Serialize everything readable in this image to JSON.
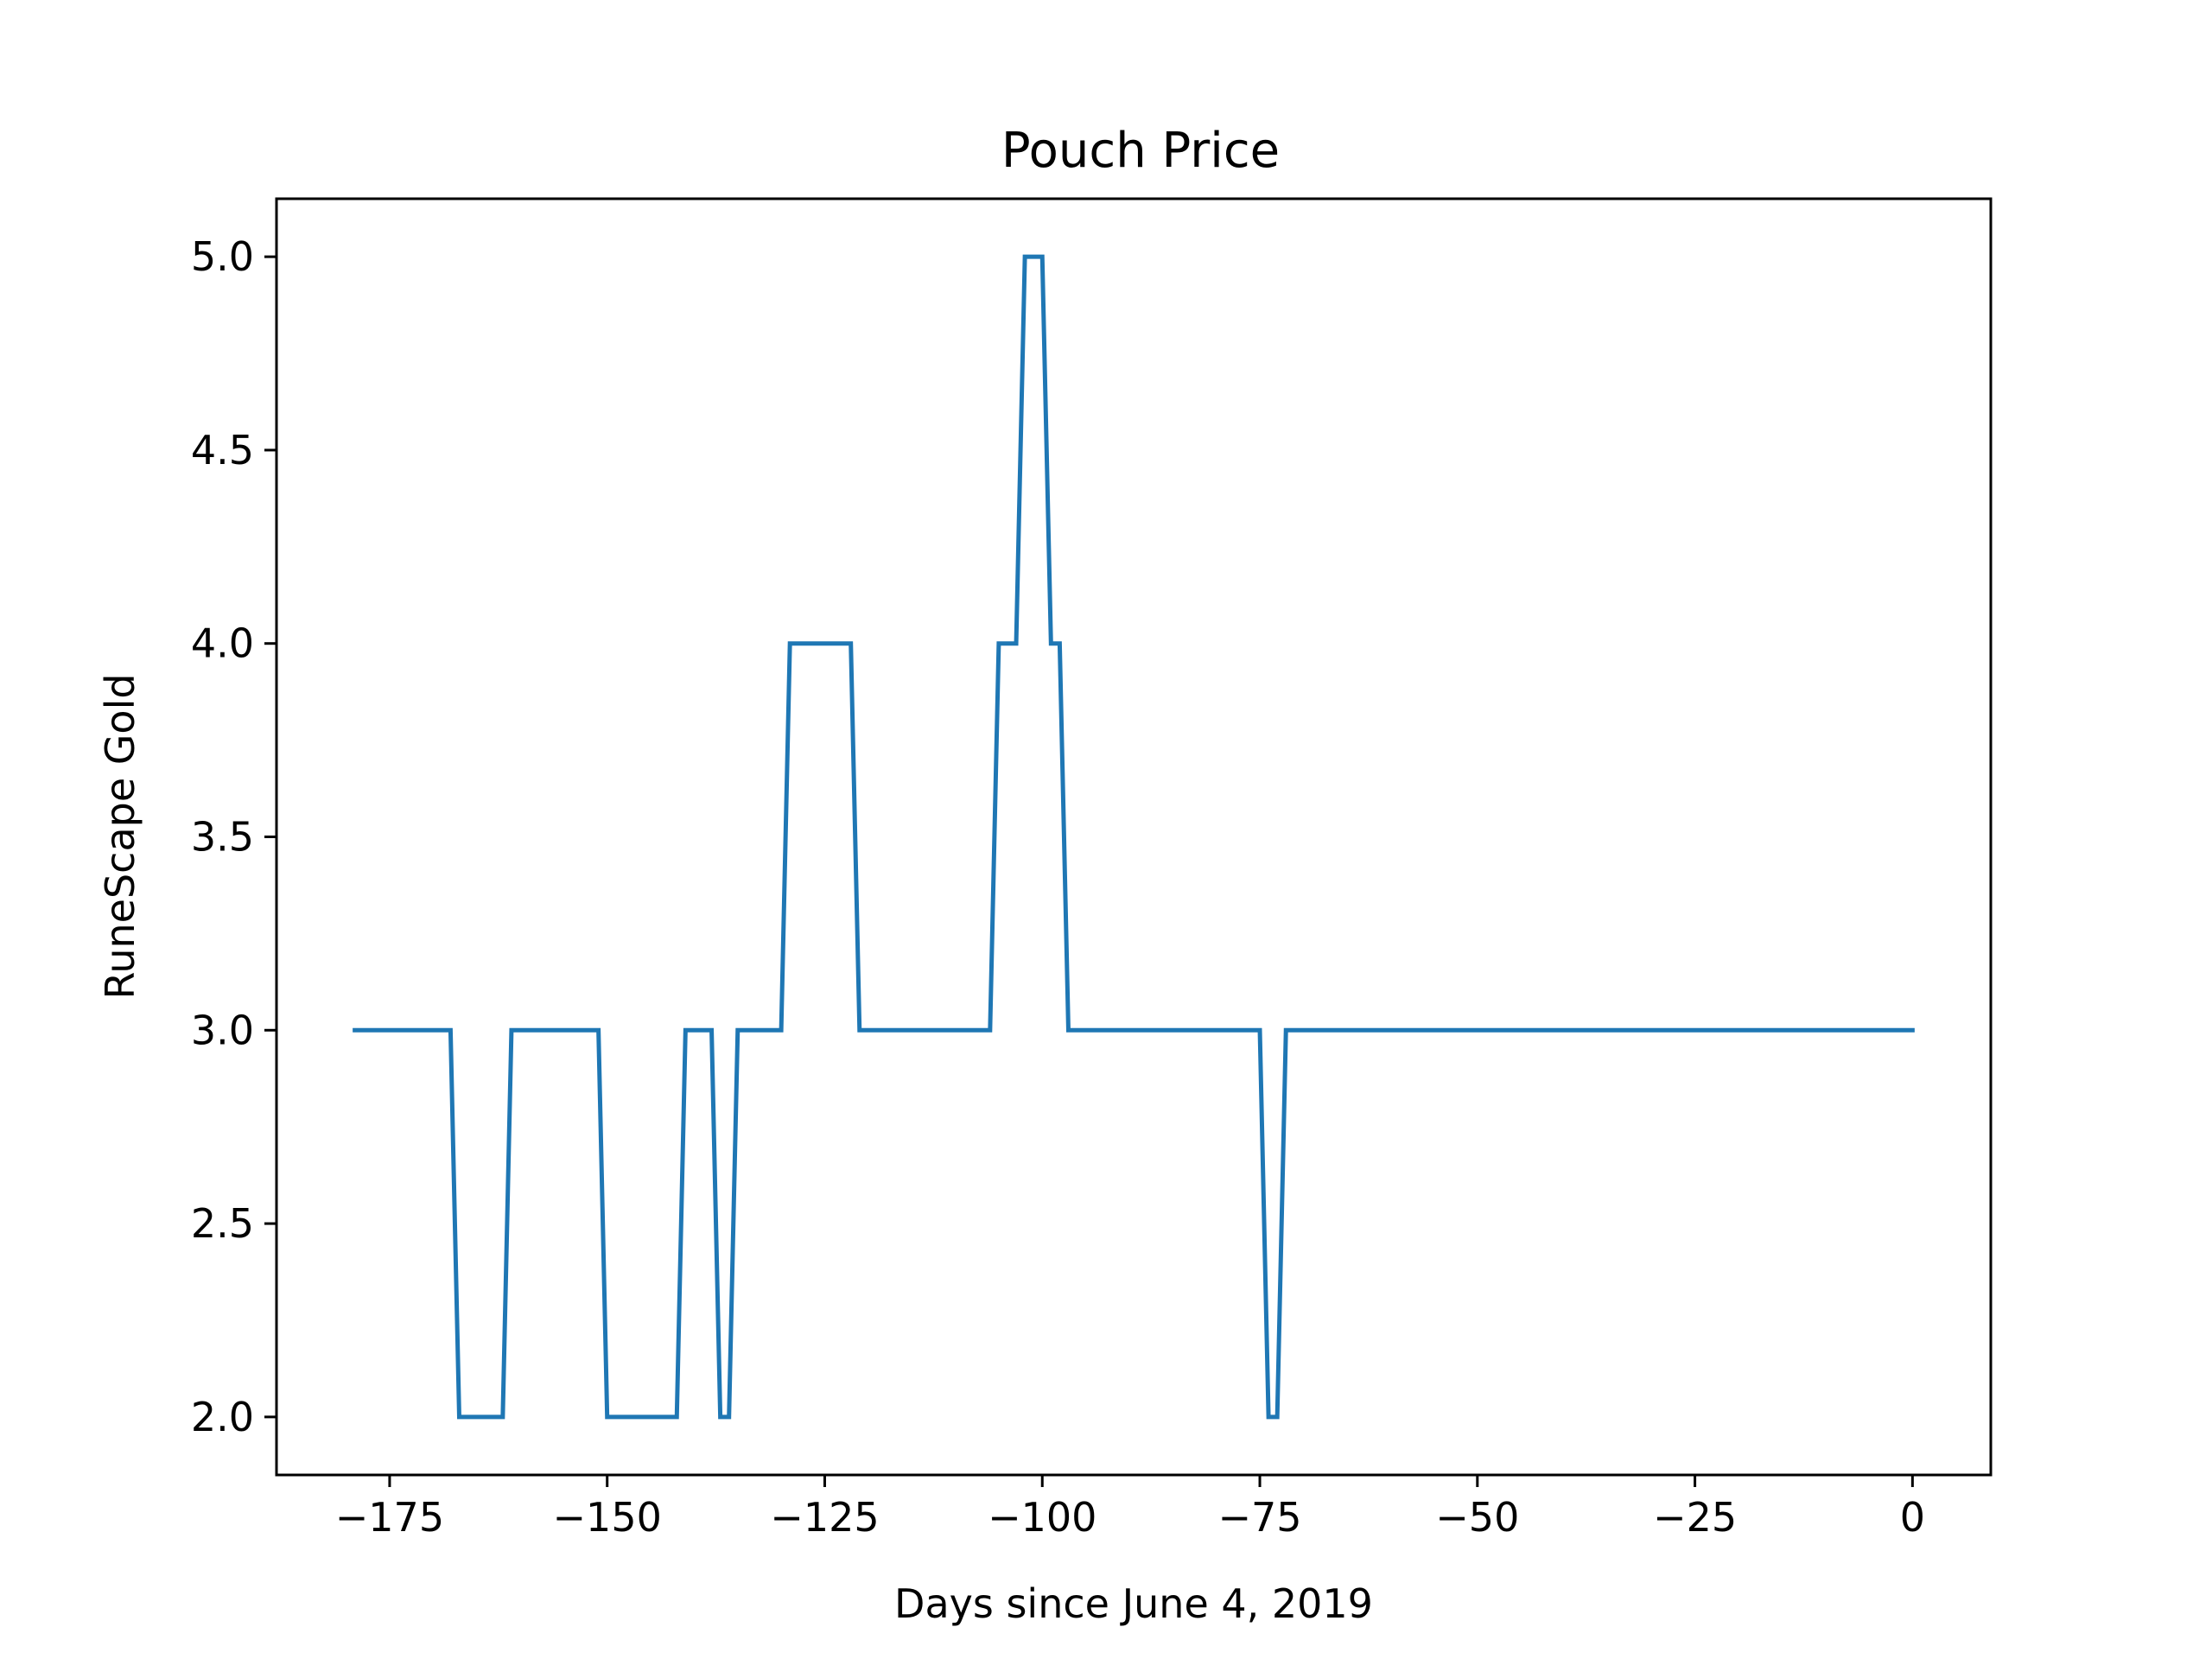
{
  "chart_data": {
    "type": "line",
    "title": "Pouch Price",
    "xlabel": "Days since June 4, 2019",
    "ylabel": "RuneScape Gold",
    "xlim": [
      -188,
      9
    ],
    "ylim": [
      1.85,
      5.15
    ],
    "xticks": [
      -175,
      -150,
      -125,
      -100,
      -75,
      -50,
      -25,
      0
    ],
    "xtick_labels": [
      "−175",
      "−150",
      "−125",
      "−100",
      "−75",
      "−50",
      "−25",
      "0"
    ],
    "yticks": [
      2.0,
      2.5,
      3.0,
      3.5,
      4.0,
      4.5,
      5.0
    ],
    "ytick_labels": [
      "2.0",
      "2.5",
      "3.0",
      "3.5",
      "4.0",
      "4.5",
      "5.0"
    ],
    "grid": false,
    "series": [
      {
        "color": "#1f77b4",
        "x": [
          -179,
          -168,
          -167,
          -162,
          -161,
          -151,
          -150,
          -142,
          -141,
          -138,
          -137,
          -136,
          -135,
          -130,
          -129,
          -122,
          -121,
          -106,
          -105,
          -103,
          -102,
          -100,
          -99,
          -98,
          -97,
          -75,
          -74,
          -73,
          -72,
          0
        ],
        "y": [
          3,
          3,
          2,
          2,
          3,
          3,
          2,
          2,
          3,
          3,
          2,
          2,
          3,
          3,
          4,
          4,
          3,
          3,
          4,
          4,
          5,
          5,
          4,
          4,
          3,
          3,
          2,
          2,
          3,
          3
        ]
      }
    ]
  }
}
